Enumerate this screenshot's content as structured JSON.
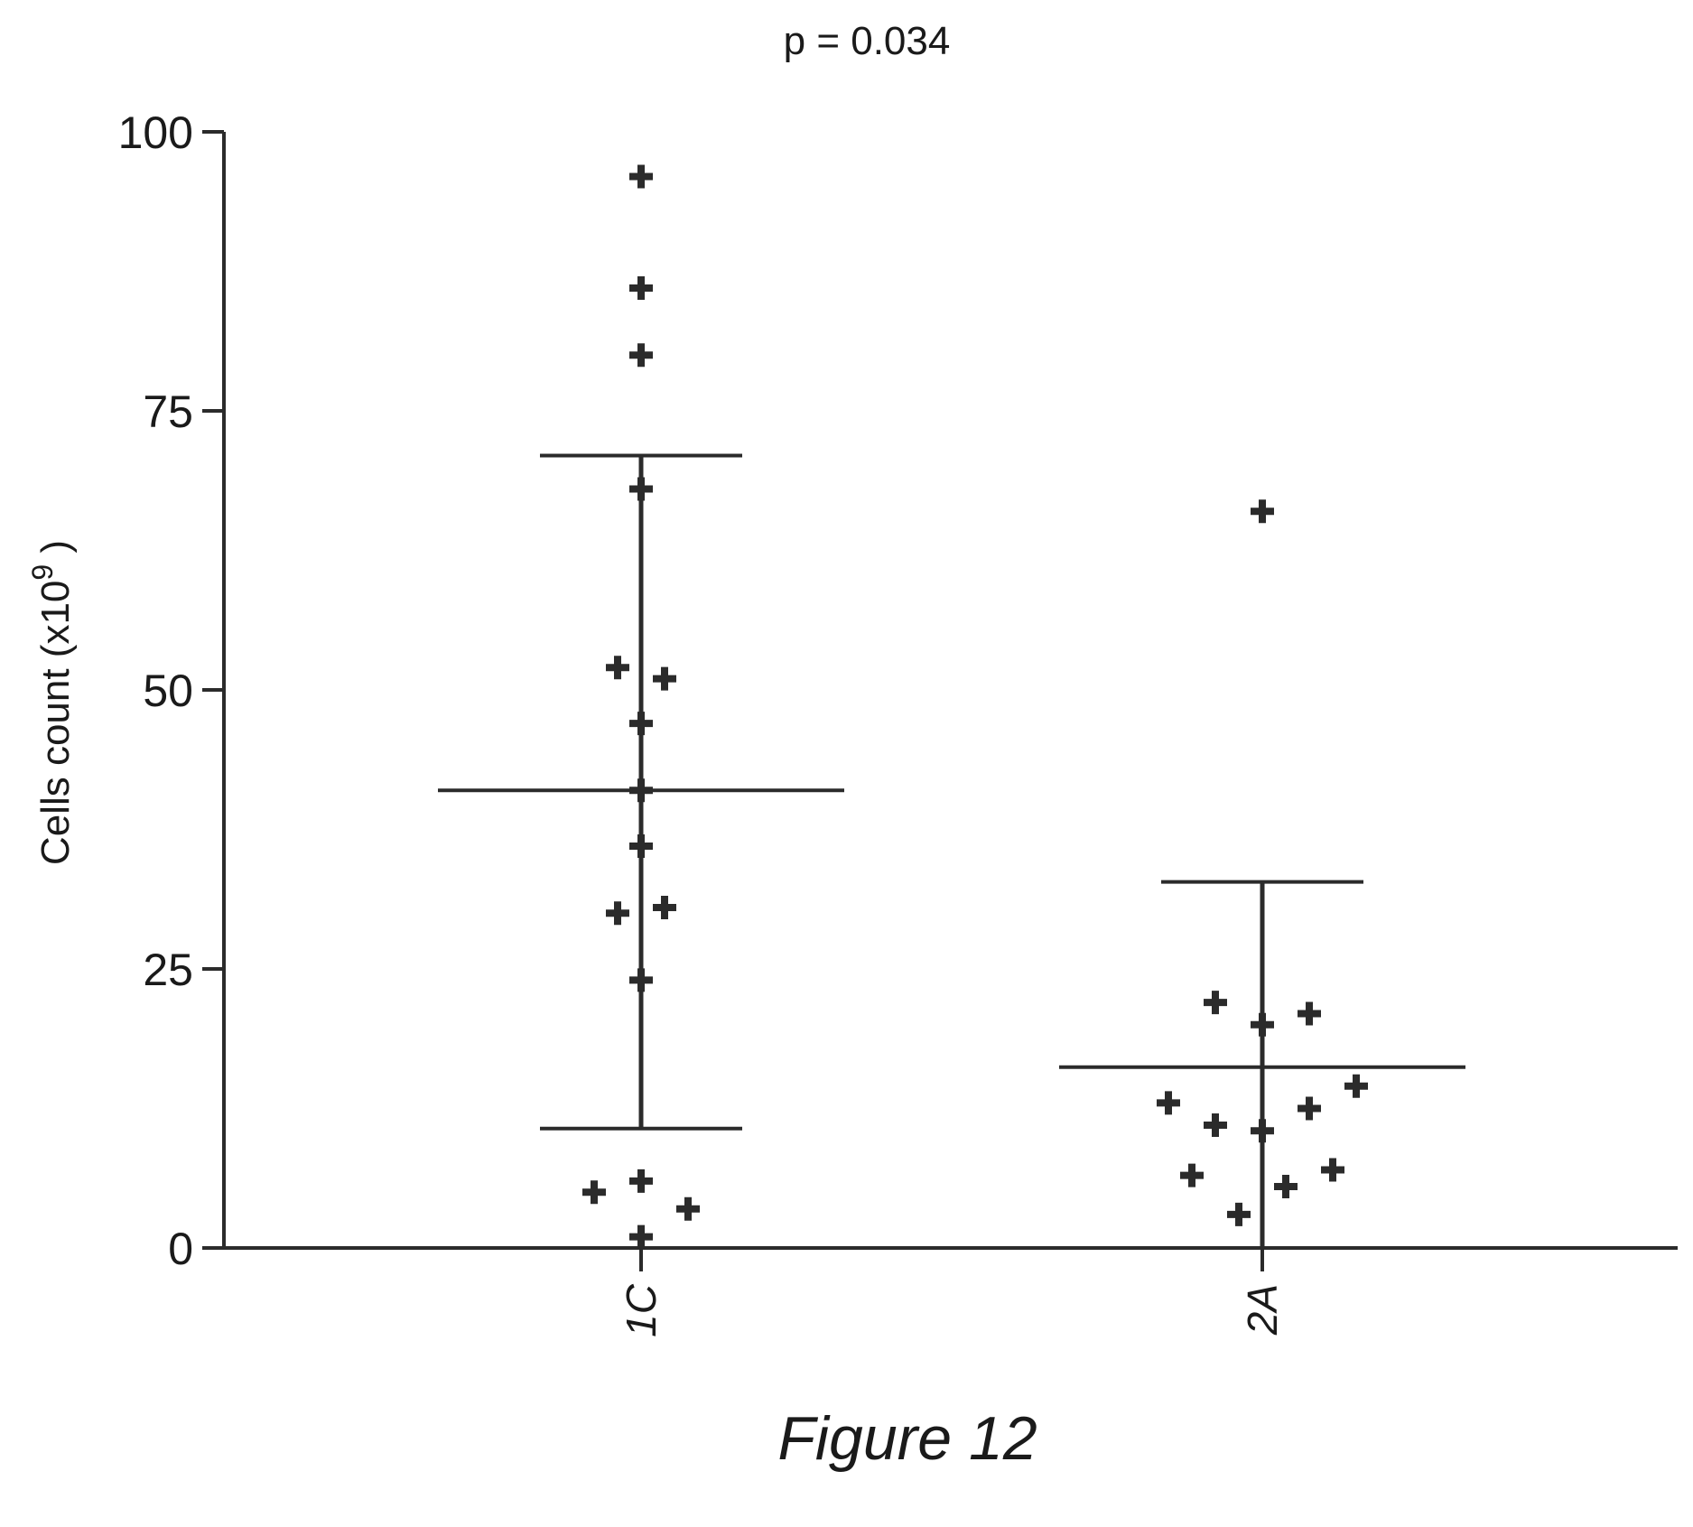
{
  "annotation": "p = 0.034",
  "caption": "Figure 12",
  "chart_data": {
    "type": "scatter",
    "title": "",
    "ylabel": "Cells count (x10",
    "ylabel_superscript": "9",
    "ylabel_suffix": " )",
    "xlabel": "",
    "ylim": [
      0,
      100
    ],
    "yticks": [
      "0",
      "25",
      "50",
      "75",
      "100"
    ],
    "categories": [
      "1C",
      "2A"
    ],
    "grid": false,
    "marker": "plus",
    "color": "#2b2b2b",
    "groups": [
      {
        "category": "1C",
        "points": [
          {
            "offset": 0,
            "y": 96
          },
          {
            "offset": 0,
            "y": 86
          },
          {
            "offset": 0,
            "y": 80
          },
          {
            "offset": 0,
            "y": 68
          },
          {
            "offset": -1,
            "y": 52
          },
          {
            "offset": 1,
            "y": 51
          },
          {
            "offset": 0,
            "y": 47
          },
          {
            "offset": 0,
            "y": 41
          },
          {
            "offset": 0,
            "y": 36
          },
          {
            "offset": -1,
            "y": 30
          },
          {
            "offset": 1,
            "y": 30.5
          },
          {
            "offset": 0,
            "y": 24
          },
          {
            "offset": 0,
            "y": 6
          },
          {
            "offset": -2,
            "y": 5
          },
          {
            "offset": 2,
            "y": 3.5
          },
          {
            "offset": 0,
            "y": 1
          }
        ],
        "mean": 41,
        "sd_upper": 71,
        "sd_lower": 10.7
      },
      {
        "category": "2A",
        "points": [
          {
            "offset": 0,
            "y": 66
          },
          {
            "offset": -2,
            "y": 22
          },
          {
            "offset": 2,
            "y": 21
          },
          {
            "offset": 0,
            "y": 20
          },
          {
            "offset": 4,
            "y": 14.5
          },
          {
            "offset": -4,
            "y": 13
          },
          {
            "offset": 2,
            "y": 12.5
          },
          {
            "offset": -2,
            "y": 11
          },
          {
            "offset": 0,
            "y": 10.5
          },
          {
            "offset": 3,
            "y": 7
          },
          {
            "offset": -3,
            "y": 6.5
          },
          {
            "offset": 1,
            "y": 5.5
          },
          {
            "offset": -1,
            "y": 3
          }
        ],
        "mean": 16.2,
        "sd_upper": 32.8,
        "sd_lower": 0
      }
    ]
  }
}
